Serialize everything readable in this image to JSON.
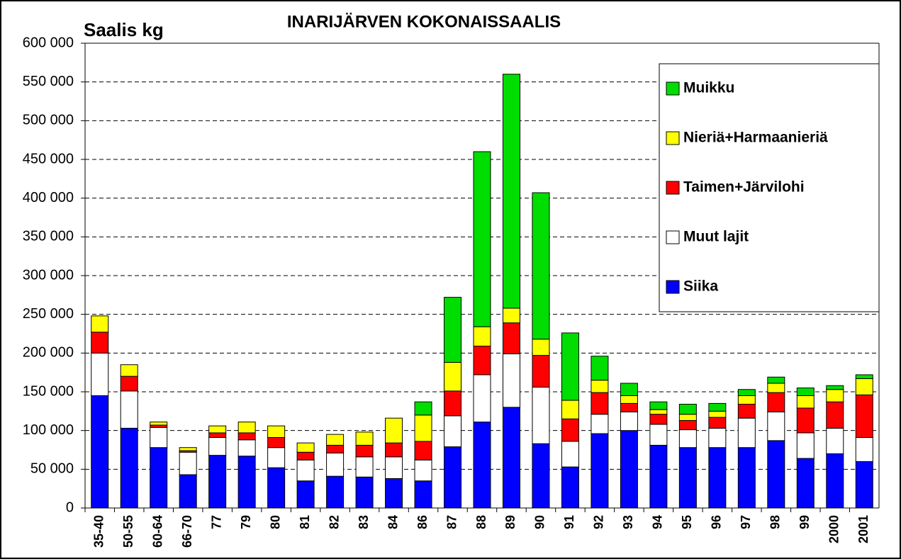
{
  "chart_data": {
    "type": "bar",
    "stacked": true,
    "title": "INARIJÄRVEN KOKONAISSAALIS",
    "y_label": "Saalis kg",
    "categories": [
      "35-40",
      "50-55",
      "60-64",
      "66-70",
      "77",
      "79",
      "80",
      "81",
      "82",
      "83",
      "84",
      "86",
      "87",
      "88",
      "89",
      "90",
      "91",
      "92",
      "93",
      "94",
      "95",
      "96",
      "97",
      "98",
      "99",
      "2000",
      "2001"
    ],
    "series": [
      {
        "name": "Siika",
        "color": "#0000ff",
        "values": [
          145000,
          103000,
          78000,
          43000,
          68000,
          67000,
          52000,
          35000,
          41000,
          40000,
          38000,
          35000,
          79000,
          111000,
          130000,
          83000,
          53000,
          96000,
          100000,
          81000,
          78000,
          78000,
          78000,
          87000,
          64000,
          70000,
          60000
        ]
      },
      {
        "name": "Muut lajit",
        "color": "#ffffff",
        "values": [
          55000,
          48000,
          26000,
          29000,
          23000,
          21000,
          26000,
          27000,
          30000,
          26000,
          28000,
          27000,
          40000,
          61000,
          69000,
          73000,
          33000,
          25000,
          24000,
          27000,
          23000,
          25000,
          38000,
          37000,
          33000,
          33000,
          31000
        ]
      },
      {
        "name": "Taimen+Järvilohi",
        "color": "#ff0000",
        "values": [
          27000,
          19000,
          3000,
          2000,
          6000,
          9000,
          13000,
          10000,
          10000,
          15000,
          18000,
          24000,
          32000,
          37000,
          40000,
          41000,
          29000,
          28000,
          11000,
          13000,
          12000,
          14000,
          18000,
          25000,
          32000,
          34000,
          55000
        ]
      },
      {
        "name": "Nieriä+Harmaanieriä",
        "color": "#ffff00",
        "values": [
          21000,
          15000,
          4000,
          4000,
          9000,
          14000,
          15000,
          12000,
          14000,
          17000,
          32000,
          34000,
          37000,
          25000,
          19000,
          21000,
          24000,
          16000,
          10000,
          6000,
          8000,
          8000,
          11000,
          12000,
          16000,
          16000,
          21000
        ]
      },
      {
        "name": "Muikku",
        "color": "#00dd00",
        "values": [
          0,
          0,
          0,
          0,
          0,
          0,
          0,
          0,
          0,
          0,
          0,
          17000,
          84000,
          226000,
          302000,
          189000,
          87000,
          31000,
          16000,
          10000,
          13000,
          10000,
          8000,
          8000,
          10000,
          5000,
          5000
        ]
      }
    ],
    "ylim": [
      0,
      600000
    ],
    "yticks": [
      0,
      {
        "value": 50000,
        "label": "50 000"
      },
      {
        "value": 100000,
        "label": "100 000"
      },
      {
        "value": 150000,
        "label": "150 000"
      },
      {
        "value": 200000,
        "label": "200 000"
      },
      {
        "value": 250000,
        "label": "250 000"
      },
      {
        "value": 300000,
        "label": "300 000"
      },
      {
        "value": 350000,
        "label": "350 000"
      },
      {
        "value": 400000,
        "label": "400 000"
      },
      {
        "value": 450000,
        "label": "450 000"
      },
      {
        "value": 500000,
        "label": "500 000"
      },
      {
        "value": 550000,
        "label": "550 000"
      },
      {
        "value": 600000,
        "label": "600 000"
      }
    ],
    "grid": true,
    "legend": "upper right"
  }
}
